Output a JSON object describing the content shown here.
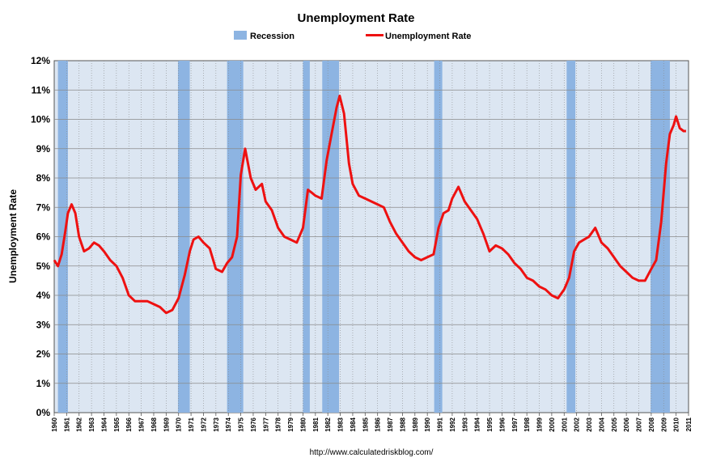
{
  "chart_data": {
    "type": "line",
    "title": "Unemployment Rate",
    "ylabel": "Unemployment Rate",
    "xlabel": "",
    "source": "http://www.calculatedriskblog.com/",
    "xlim": [
      1960,
      2011
    ],
    "ylim": [
      0,
      12
    ],
    "y_ticks": [
      "0%",
      "1%",
      "2%",
      "3%",
      "4%",
      "5%",
      "6%",
      "7%",
      "8%",
      "9%",
      "10%",
      "11%",
      "12%"
    ],
    "x_ticks": [
      "1960",
      "1961",
      "1962",
      "1963",
      "1964",
      "1965",
      "1966",
      "1967",
      "1968",
      "1969",
      "1970",
      "1971",
      "1972",
      "1973",
      "1974",
      "1975",
      "1976",
      "1977",
      "1978",
      "1979",
      "1980",
      "1981",
      "1982",
      "1983",
      "1984",
      "1985",
      "1986",
      "1987",
      "1988",
      "1989",
      "1990",
      "1991",
      "1992",
      "1993",
      "1994",
      "1995",
      "1996",
      "1997",
      "1998",
      "1999",
      "2000",
      "2001",
      "2002",
      "2003",
      "2004",
      "2005",
      "2006",
      "2007",
      "2008",
      "2009",
      "2010",
      "2011"
    ],
    "grid": true,
    "legend_position": "top-center",
    "legend": [
      {
        "label": "Recession",
        "kind": "band",
        "color": "#8db4e2"
      },
      {
        "label": "Unemployment Rate",
        "kind": "line",
        "color": "#ee1111"
      }
    ],
    "colors": {
      "plot_background": "#dce6f2",
      "recession": "#8db4e2",
      "line": "#ee1111",
      "grid": "#8a8a8a"
    },
    "recessions": [
      {
        "start": 1960.3,
        "end": 1961.1
      },
      {
        "start": 1969.95,
        "end": 1970.9
      },
      {
        "start": 1973.9,
        "end": 1975.2
      },
      {
        "start": 1980.0,
        "end": 1980.55
      },
      {
        "start": 1981.55,
        "end": 1982.9
      },
      {
        "start": 1990.55,
        "end": 1991.2
      },
      {
        "start": 2001.2,
        "end": 2001.9
      },
      {
        "start": 2007.95,
        "end": 2009.5
      }
    ],
    "series": [
      {
        "name": "Unemployment Rate",
        "x": [
          1960.0,
          1960.3,
          1960.6,
          1960.9,
          1961.1,
          1961.4,
          1961.7,
          1962.0,
          1962.4,
          1962.8,
          1963.2,
          1963.6,
          1964.0,
          1964.5,
          1965.0,
          1965.5,
          1966.0,
          1966.5,
          1967.0,
          1967.5,
          1968.0,
          1968.5,
          1969.0,
          1969.5,
          1970.0,
          1970.5,
          1970.9,
          1971.2,
          1971.6,
          1972.0,
          1972.5,
          1973.0,
          1973.5,
          1973.9,
          1974.3,
          1974.7,
          1975.0,
          1975.35,
          1975.8,
          1976.2,
          1976.7,
          1977.0,
          1977.5,
          1978.0,
          1978.5,
          1979.0,
          1979.5,
          1980.0,
          1980.4,
          1980.7,
          1981.0,
          1981.5,
          1981.9,
          1982.3,
          1982.7,
          1982.95,
          1983.3,
          1983.7,
          1984.0,
          1984.5,
          1985.0,
          1985.5,
          1986.0,
          1986.5,
          1987.0,
          1987.5,
          1988.0,
          1988.5,
          1989.0,
          1989.5,
          1990.0,
          1990.5,
          1990.9,
          1991.3,
          1991.7,
          1992.0,
          1992.5,
          1993.0,
          1993.5,
          1994.0,
          1994.5,
          1995.0,
          1995.5,
          1996.0,
          1996.5,
          1997.0,
          1997.5,
          1998.0,
          1998.5,
          1999.0,
          1999.5,
          2000.0,
          2000.5,
          2001.0,
          2001.4,
          2001.8,
          2002.2,
          2002.6,
          2003.0,
          2003.5,
          2004.0,
          2004.5,
          2005.0,
          2005.5,
          2006.0,
          2006.5,
          2007.0,
          2007.5,
          2008.0,
          2008.4,
          2008.8,
          2009.2,
          2009.5,
          2009.8,
          2010.0,
          2010.3,
          2010.6,
          2010.8
        ],
        "values": [
          5.2,
          5.0,
          5.4,
          6.2,
          6.8,
          7.1,
          6.8,
          6.0,
          5.5,
          5.6,
          5.8,
          5.7,
          5.5,
          5.2,
          5.0,
          4.6,
          4.0,
          3.8,
          3.8,
          3.8,
          3.7,
          3.6,
          3.4,
          3.5,
          3.9,
          4.7,
          5.5,
          5.9,
          6.0,
          5.8,
          5.6,
          4.9,
          4.8,
          5.1,
          5.3,
          6.0,
          8.1,
          9.0,
          8.0,
          7.6,
          7.8,
          7.2,
          6.9,
          6.3,
          6.0,
          5.9,
          5.8,
          6.3,
          7.6,
          7.5,
          7.4,
          7.3,
          8.6,
          9.5,
          10.4,
          10.8,
          10.2,
          8.5,
          7.8,
          7.4,
          7.3,
          7.2,
          7.1,
          7.0,
          6.5,
          6.1,
          5.8,
          5.5,
          5.3,
          5.2,
          5.3,
          5.4,
          6.3,
          6.8,
          6.9,
          7.3,
          7.7,
          7.2,
          6.9,
          6.6,
          6.1,
          5.5,
          5.7,
          5.6,
          5.4,
          5.1,
          4.9,
          4.6,
          4.5,
          4.3,
          4.2,
          4.0,
          3.9,
          4.2,
          4.6,
          5.5,
          5.8,
          5.9,
          6.0,
          6.3,
          5.8,
          5.6,
          5.3,
          5.0,
          4.8,
          4.6,
          4.5,
          4.5,
          4.9,
          5.2,
          6.5,
          8.5,
          9.5,
          9.8,
          10.1,
          9.7,
          9.6,
          9.6
        ]
      }
    ]
  }
}
